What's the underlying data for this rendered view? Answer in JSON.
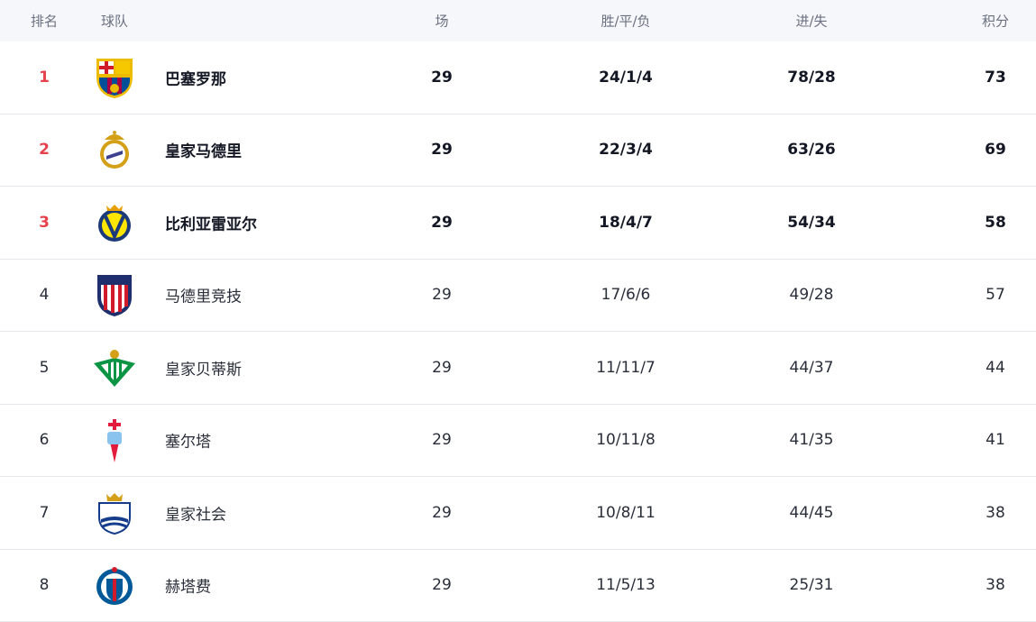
{
  "header": {
    "rank": "排名",
    "team": "球队",
    "played": "场",
    "wdl": "胜/平/负",
    "goals": "进/失",
    "points": "积分"
  },
  "rows": [
    {
      "rank": "1",
      "team": "巴塞罗那",
      "played": "29",
      "wdl": "24/1/4",
      "goals": "78/28",
      "points": "73",
      "crest": "barcelona-crest",
      "colors": [
        "#a50044",
        "#004d98",
        "#edbb00"
      ]
    },
    {
      "rank": "2",
      "team": "皇家马德里",
      "played": "29",
      "wdl": "22/3/4",
      "goals": "63/26",
      "points": "69",
      "crest": "real-madrid-crest",
      "colors": [
        "#ffffff",
        "#d4a017",
        "#3d3f8f"
      ]
    },
    {
      "rank": "3",
      "team": "比利亚雷亚尔",
      "played": "29",
      "wdl": "18/4/7",
      "goals": "54/34",
      "points": "58",
      "crest": "villarreal-crest",
      "colors": [
        "#ffe600",
        "#1a3a7a",
        "#e5a000"
      ]
    },
    {
      "rank": "4",
      "team": "马德里竞技",
      "played": "29",
      "wdl": "17/6/6",
      "goals": "49/28",
      "points": "57",
      "crest": "atletico-crest",
      "colors": [
        "#d11a2a",
        "#ffffff",
        "#1f2f6e"
      ]
    },
    {
      "rank": "5",
      "team": "皇家贝蒂斯",
      "played": "29",
      "wdl": "11/11/7",
      "goals": "44/37",
      "points": "44",
      "crest": "betis-crest",
      "colors": [
        "#0b9444",
        "#ffffff",
        "#d4a017"
      ]
    },
    {
      "rank": "6",
      "team": "塞尔塔",
      "played": "29",
      "wdl": "10/11/8",
      "goals": "41/35",
      "points": "41",
      "crest": "celta-crest",
      "colors": [
        "#8ac3ee",
        "#e21b3c",
        "#ffffff"
      ]
    },
    {
      "rank": "7",
      "team": "皇家社会",
      "played": "29",
      "wdl": "10/8/11",
      "goals": "44/45",
      "points": "38",
      "crest": "real-sociedad-crest",
      "colors": [
        "#143c8b",
        "#ffffff",
        "#d4a017"
      ]
    },
    {
      "rank": "8",
      "team": "赫塔费",
      "played": "29",
      "wdl": "11/5/13",
      "goals": "25/31",
      "points": "38",
      "crest": "getafe-crest",
      "colors": [
        "#005999",
        "#ffffff",
        "#d11a2a"
      ]
    }
  ],
  "accent": "#e5424d"
}
